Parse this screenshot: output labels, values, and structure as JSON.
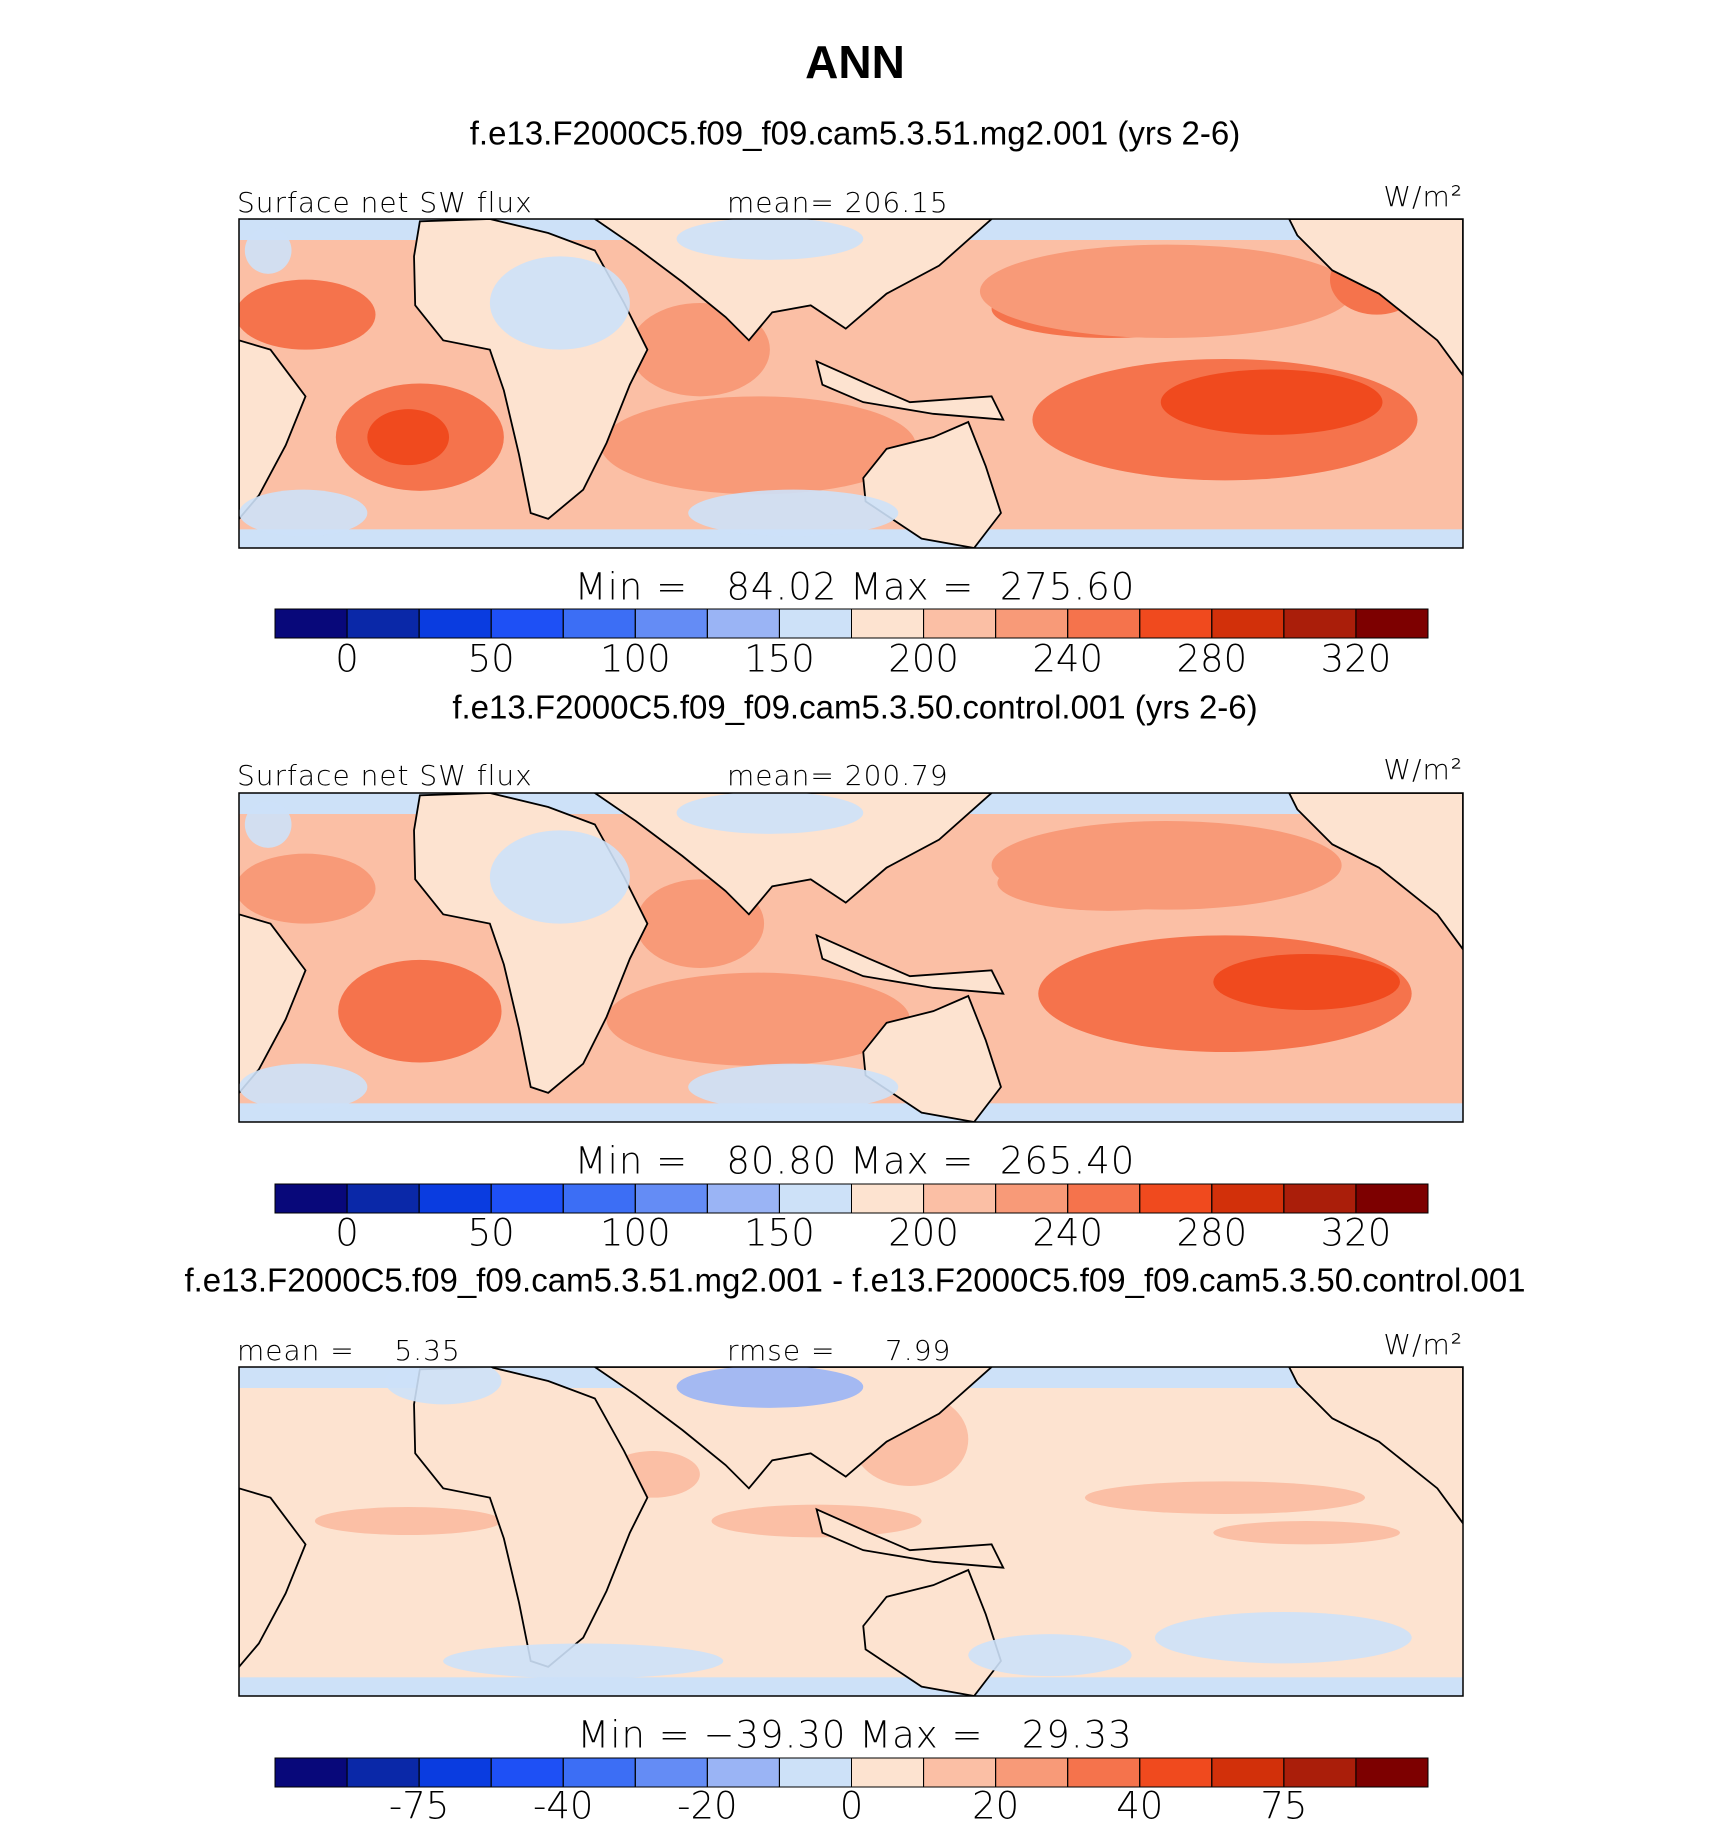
{
  "title": "ANN",
  "panels": [
    {
      "subtitle": "f.e13.F2000C5.f09_f09.cam5.3.51.mg2.001 (yrs 2-6)",
      "left_label": "Surface net SW flux",
      "center_label": "mean= 206.15",
      "units": "W/m²",
      "min_max": "Min =   84.02 Max =  275.60",
      "colorbar": {
        "levels": [
          0,
          25,
          50,
          75,
          100,
          125,
          150,
          175,
          200,
          220,
          240,
          260,
          280,
          300,
          320
        ],
        "ticks": [
          0,
          50,
          100,
          150,
          200,
          240,
          280,
          320
        ],
        "colors": [
          "#08087a",
          "#0a28a8",
          "#0a3ce0",
          "#1e50f5",
          "#3c6ef5",
          "#648cf5",
          "#9ab4f5",
          "#cde1f8",
          "#fde3d0",
          "#fbbfa5",
          "#f89a78",
          "#f5734c",
          "#f04a1e",
          "#d2300a",
          "#aa1e0a",
          "#7d0000"
        ]
      }
    },
    {
      "subtitle": "f.e13.F2000C5.f09_f09.cam5.3.50.control.001 (yrs 2-6)",
      "left_label": "Surface net SW flux",
      "center_label": "mean= 200.79",
      "units": "W/m²",
      "min_max": "Min =   80.80 Max =  265.40",
      "colorbar": {
        "levels": [
          0,
          25,
          50,
          75,
          100,
          125,
          150,
          175,
          200,
          220,
          240,
          260,
          280,
          300,
          320
        ],
        "ticks": [
          0,
          50,
          100,
          150,
          200,
          240,
          280,
          320
        ],
        "colors": [
          "#08087a",
          "#0a28a8",
          "#0a3ce0",
          "#1e50f5",
          "#3c6ef5",
          "#648cf5",
          "#9ab4f5",
          "#cde1f8",
          "#fde3d0",
          "#fbbfa5",
          "#f89a78",
          "#f5734c",
          "#f04a1e",
          "#d2300a",
          "#aa1e0a",
          "#7d0000"
        ]
      }
    },
    {
      "subtitle": "f.e13.F2000C5.f09_f09.cam5.3.51.mg2.001 - f.e13.F2000C5.f09_f09.cam5.3.50.control.001",
      "left_label": "mean =    5.35",
      "center_label": "rmse =     7.99",
      "units": "W/m²",
      "min_max": "Min = −39.30 Max =   29.33",
      "colorbar": {
        "levels": [
          -100,
          -75,
          -50,
          -40,
          -30,
          -20,
          -10,
          0,
          10,
          20,
          30,
          40,
          50,
          75,
          100
        ],
        "ticks": [
          -75,
          -40,
          -20,
          0,
          20,
          40,
          75
        ],
        "colors": [
          "#08087a",
          "#0a28a8",
          "#0a3ce0",
          "#1e50f5",
          "#3c6ef5",
          "#648cf5",
          "#9ab4f5",
          "#cde1f8",
          "#fde3d0",
          "#fbbfa5",
          "#f89a78",
          "#f5734c",
          "#f04a1e",
          "#d2300a",
          "#aa1e0a",
          "#7d0000"
        ]
      }
    }
  ]
}
